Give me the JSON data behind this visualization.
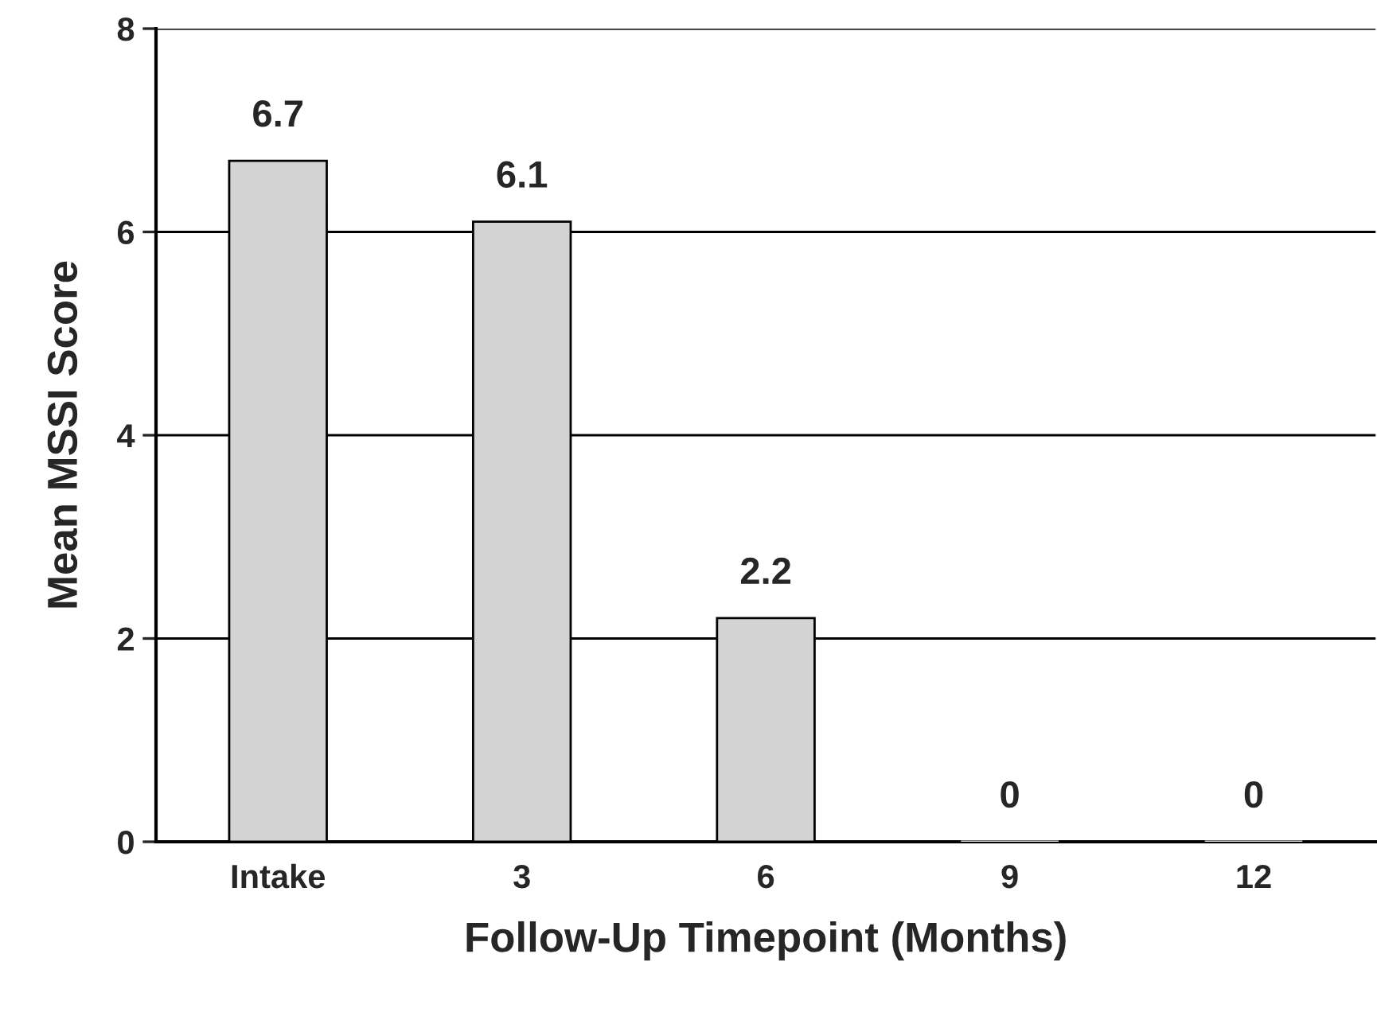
{
  "chart_data": {
    "type": "bar",
    "xlabel": "Follow-Up Timepoint (Months)",
    "ylabel": "Mean MSSI Score",
    "categories": [
      "Intake",
      "3",
      "6",
      "9",
      "12"
    ],
    "values": [
      6.7,
      6.1,
      2.2,
      0,
      0
    ],
    "color": "#d3d3d3",
    "ylim": [
      0,
      8
    ],
    "yticks": [
      0,
      2,
      4,
      6,
      8
    ],
    "grid": "y",
    "data_labels": true,
    "legend": false
  }
}
